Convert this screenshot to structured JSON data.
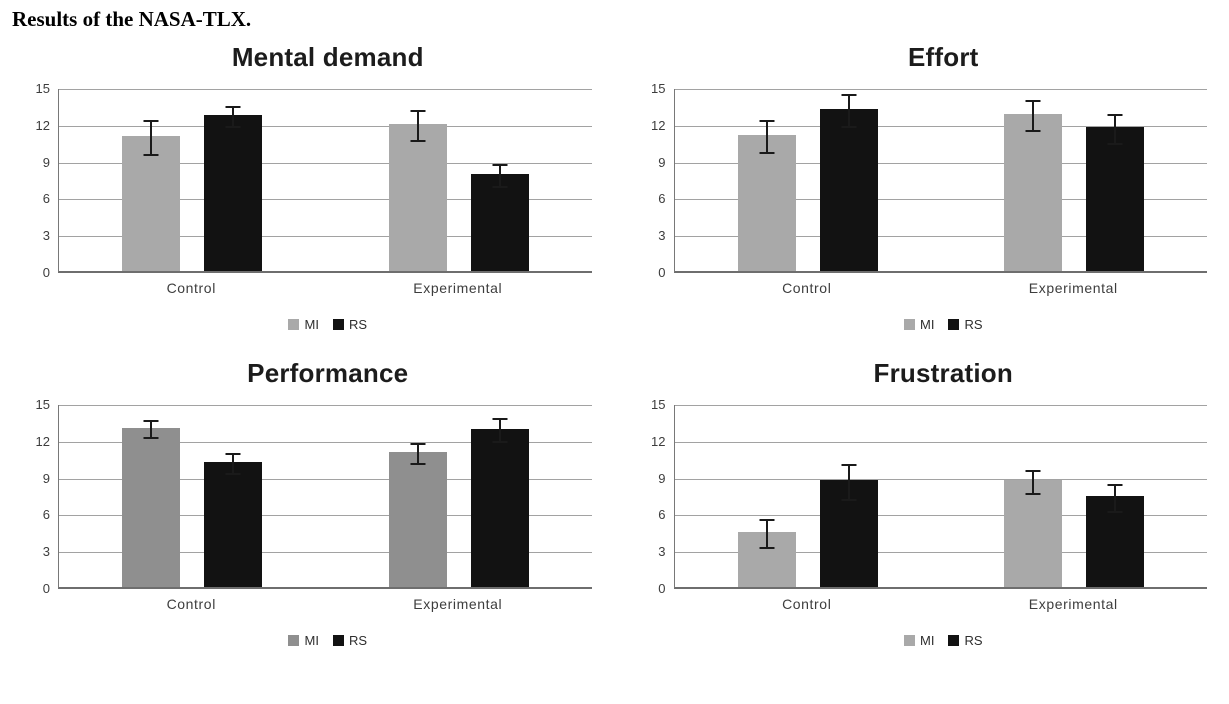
{
  "title": "Results of the NASA-TLX.",
  "chart_data": [
    {
      "type": "bar",
      "title": "Mental demand",
      "categories": [
        "Control",
        "Experimental"
      ],
      "series": [
        {
          "name": "MI",
          "color": "#a9a9a9",
          "values": [
            11.0,
            12.0
          ],
          "errors": [
            1.5,
            1.3
          ]
        },
        {
          "name": "RS",
          "color": "#121212",
          "values": [
            12.7,
            7.9
          ],
          "errors": [
            0.9,
            1.0
          ]
        }
      ],
      "xlabel": "",
      "ylabel": "",
      "ylim": [
        0,
        15
      ],
      "yticks": [
        0,
        3,
        6,
        9,
        12,
        15
      ],
      "grid": true,
      "legend_position": "bottom"
    },
    {
      "type": "bar",
      "title": "Effort",
      "categories": [
        "Control",
        "Experimental"
      ],
      "series": [
        {
          "name": "MI",
          "color": "#a9a9a9",
          "values": [
            11.1,
            12.8
          ],
          "errors": [
            1.4,
            1.3
          ]
        },
        {
          "name": "RS",
          "color": "#121212",
          "values": [
            13.2,
            11.7
          ],
          "errors": [
            1.4,
            1.3
          ]
        }
      ],
      "xlabel": "",
      "ylabel": "",
      "ylim": [
        0,
        15
      ],
      "yticks": [
        0,
        3,
        6,
        9,
        12,
        15
      ],
      "grid": true,
      "legend_position": "bottom"
    },
    {
      "type": "bar",
      "title": "Performance",
      "categories": [
        "Control",
        "Experimental"
      ],
      "series": [
        {
          "name": "MI",
          "color": "#8f8f8f",
          "values": [
            13.0,
            11.0
          ],
          "errors": [
            0.8,
            0.9
          ]
        },
        {
          "name": "RS",
          "color": "#121212",
          "values": [
            10.2,
            12.9
          ],
          "errors": [
            0.9,
            1.0
          ]
        }
      ],
      "xlabel": "",
      "ylabel": "",
      "ylim": [
        0,
        15
      ],
      "yticks": [
        0,
        3,
        6,
        9,
        12,
        15
      ],
      "grid": true,
      "legend_position": "bottom"
    },
    {
      "type": "bar",
      "title": "Frustration",
      "categories": [
        "Control",
        "Experimental"
      ],
      "series": [
        {
          "name": "MI",
          "color": "#a9a9a9",
          "values": [
            4.5,
            8.7
          ],
          "errors": [
            1.2,
            1.0
          ]
        },
        {
          "name": "RS",
          "color": "#121212",
          "values": [
            8.7,
            7.4
          ],
          "errors": [
            1.5,
            1.2
          ]
        }
      ],
      "xlabel": "",
      "ylabel": "",
      "ylim": [
        0,
        15
      ],
      "yticks": [
        0,
        3,
        6,
        9,
        12,
        15
      ],
      "grid": true,
      "legend_position": "bottom"
    }
  ]
}
